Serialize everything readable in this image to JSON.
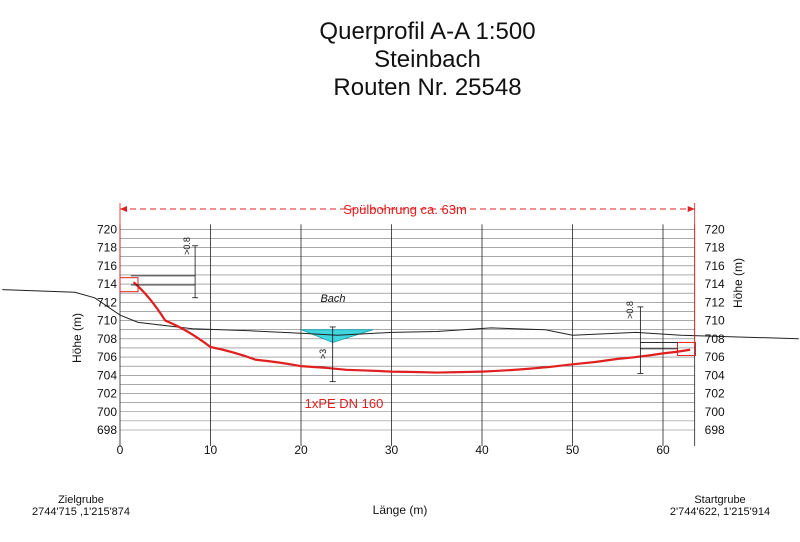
{
  "title": {
    "line1": "Querprofil A-A 1:500",
    "line2": "Steinbach",
    "line3": "Routen Nr. 25548"
  },
  "annotations": {
    "drill": "Spülbohrung ca. 63m",
    "creek": "Bach",
    "pipe": "1xPE DN 160",
    "cover_left": ">0.8",
    "cover_right": ">0.8",
    "cover_creek": ">3"
  },
  "colors": {
    "drill_line": "#e02020",
    "water": "#3fd6e0",
    "terrain": "#222222",
    "grid": "#777777"
  },
  "labels": {
    "start_pit_name": "Startgrube",
    "start_pit_coords": "2'744'622, 1'215'914",
    "target_pit_name": "Zielgrube",
    "target_pit_coords": "2744'715 ,1'215'874"
  },
  "chart_data": {
    "type": "line",
    "xlabel": "Länge (m)",
    "ylabel_left": "Höhe (m)",
    "ylabel_right": "Höhe (m)",
    "xlim": [
      0,
      63.5
    ],
    "ylim": [
      698,
      720
    ],
    "x_ticks": [
      0,
      10,
      20,
      30,
      40,
      50,
      60
    ],
    "y_ticks": [
      698,
      700,
      702,
      704,
      706,
      708,
      710,
      712,
      714,
      716,
      718,
      720
    ],
    "series": [
      {
        "role": "terrain",
        "x": [
          -13,
          -5,
          -2.8,
          0,
          2,
          8,
          14,
          20,
          24,
          30,
          35,
          41,
          47,
          50,
          57,
          62,
          75
        ],
        "y": [
          713.4,
          713.1,
          712.5,
          710.6,
          709.8,
          709.1,
          708.9,
          708.6,
          708.4,
          708.7,
          708.8,
          709.2,
          709.0,
          708.4,
          708.7,
          708.4,
          708.0
        ]
      },
      {
        "role": "drill_path",
        "x": [
          1.5,
          5,
          10,
          15,
          20,
          25,
          30,
          35,
          40,
          45,
          50,
          55,
          60,
          63
        ],
        "y": [
          714.2,
          710.0,
          707.1,
          705.7,
          705.0,
          704.6,
          704.4,
          704.3,
          704.4,
          704.7,
          705.2,
          705.8,
          706.4,
          706.8
        ]
      }
    ],
    "water_surface": {
      "x": [
        20,
        28
      ],
      "y": 709.0
    },
    "water_bottom": {
      "x": 23.5,
      "y": 707.6
    }
  }
}
